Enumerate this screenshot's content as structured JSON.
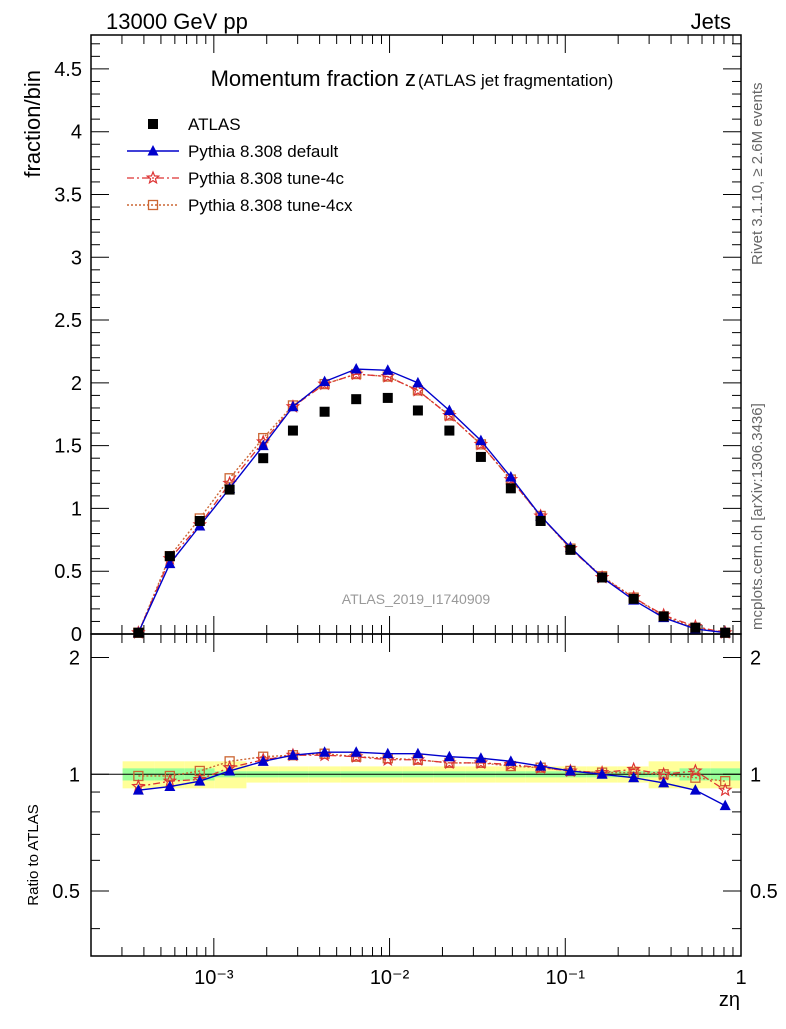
{
  "header": {
    "energy": "13000 GeV pp",
    "category": "Jets",
    "rivet": "Rivet 3.1.10, ≥ 2.6M events",
    "site": "mcplots.cern.ch [arXiv:1306.3436]",
    "analysis": "ATLAS_2019_I1740909"
  },
  "chart_data": {
    "type": "line",
    "title_main": "Momentum fraction z",
    "title_sub": "(ATLAS jet fragmentation)",
    "xlabel": "zη",
    "ylabel_top": "fraction/bin",
    "ylabel_bottom": "Ratio to ATLAS",
    "x_scale": "log",
    "xlim": [
      0.0002,
      1
    ],
    "ylim_top": [
      0,
      4.77
    ],
    "ylim_bottom": [
      0.34,
      2.3
    ],
    "x_tick_labels": [
      "10⁻³",
      "10⁻²",
      "10⁻¹",
      "1"
    ],
    "y_tick_labels_top": [
      "0",
      "0.5",
      "1",
      "1.5",
      "2",
      "2.5",
      "3",
      "3.5",
      "4",
      "4.5"
    ],
    "y_tick_labels_bottom": [
      "0.5",
      "1",
      "2"
    ],
    "legend_position": "top-left",
    "x": [
      0.000372,
      0.000562,
      0.000832,
      0.00123,
      0.00191,
      0.00282,
      0.00427,
      0.00646,
      0.00977,
      0.0145,
      0.0219,
      0.0331,
      0.049,
      0.0724,
      0.107,
      0.162,
      0.245,
      0.363,
      0.55,
      0.813
    ],
    "series": [
      {
        "name": "ATLAS",
        "style": "marker",
        "color": "#000000",
        "values": [
          0.01,
          0.62,
          0.9,
          1.15,
          1.4,
          1.62,
          1.77,
          1.87,
          1.88,
          1.78,
          1.62,
          1.41,
          1.16,
          0.9,
          0.67,
          0.45,
          0.28,
          0.14,
          0.05,
          0.01
        ],
        "ratio": [
          1,
          1,
          1,
          1,
          1,
          1,
          1,
          1,
          1,
          1,
          1,
          1,
          1,
          1,
          1,
          1,
          1,
          1,
          1,
          1
        ]
      },
      {
        "name": "Pythia 8.308 default",
        "style": "solid",
        "color": "#0000cc",
        "values": [
          0.01,
          0.56,
          0.86,
          1.16,
          1.5,
          1.81,
          2.01,
          2.11,
          2.1,
          2.0,
          1.78,
          1.54,
          1.25,
          0.94,
          0.69,
          0.45,
          0.27,
          0.13,
          0.04,
          0.01
        ],
        "ratio": [
          0.91,
          0.93,
          0.96,
          1.02,
          1.08,
          1.12,
          1.14,
          1.14,
          1.13,
          1.13,
          1.11,
          1.1,
          1.08,
          1.05,
          1.02,
          1.0,
          0.98,
          0.95,
          0.91,
          0.83
        ]
      },
      {
        "name": "Pythia 8.308 tune-4c",
        "style": "dashdot",
        "color": "#dd3333",
        "values": [
          0.01,
          0.6,
          0.87,
          1.2,
          1.53,
          1.81,
          1.99,
          2.07,
          2.05,
          1.94,
          1.74,
          1.51,
          1.23,
          0.94,
          0.68,
          0.45,
          0.29,
          0.15,
          0.06,
          0.01
        ],
        "ratio": [
          0.93,
          0.96,
          0.97,
          1.04,
          1.09,
          1.12,
          1.12,
          1.11,
          1.09,
          1.09,
          1.07,
          1.07,
          1.06,
          1.04,
          1.02,
          1.01,
          1.03,
          1.0,
          1.02,
          0.91
        ]
      },
      {
        "name": "Pythia 8.308 tune-4cx",
        "style": "dotted",
        "color": "#cc6633",
        "values": [
          0.01,
          0.62,
          0.92,
          1.24,
          1.56,
          1.82,
          1.99,
          2.07,
          2.05,
          1.94,
          1.74,
          1.51,
          1.23,
          0.94,
          0.68,
          0.46,
          0.29,
          0.14,
          0.05,
          0.01
        ],
        "ratio": [
          0.99,
          0.99,
          1.02,
          1.08,
          1.11,
          1.12,
          1.13,
          1.11,
          1.1,
          1.09,
          1.07,
          1.07,
          1.05,
          1.04,
          1.02,
          1.01,
          1.01,
          1.0,
          0.98,
          0.96
        ]
      }
    ],
    "band_yellow_halfwidth": 0.08,
    "band_green_halfwidth": 0.03
  }
}
